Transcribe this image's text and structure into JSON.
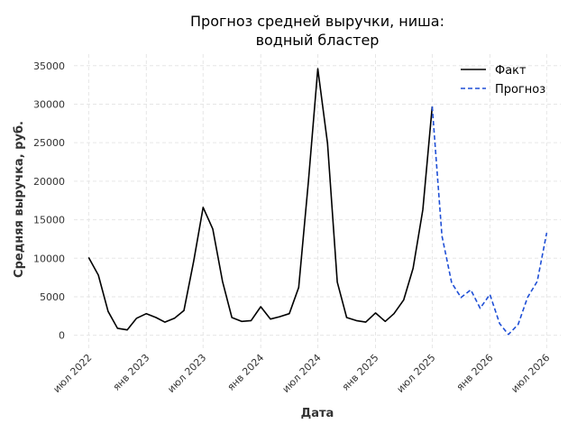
{
  "chart_data": {
    "type": "line",
    "title_lines": [
      "Прогноз средней выручки, ниша:",
      "водный бластер"
    ],
    "xlabel": "Дата",
    "ylabel": "Средняя выручка, руб.",
    "ylim": [
      -1800,
      36500
    ],
    "xlim": [
      "2022-05-15",
      "2026-08-15"
    ],
    "y_ticks": [
      0,
      5000,
      10000,
      15000,
      20000,
      25000,
      30000,
      35000
    ],
    "y_tick_labels": [
      "0",
      "5000",
      "10000",
      "15000",
      "20000",
      "25000",
      "30000",
      "35000"
    ],
    "x_ticks": [
      "2022-07-01",
      "2023-01-01",
      "2023-07-01",
      "2024-01-01",
      "2024-07-01",
      "2025-01-01",
      "2025-07-01",
      "2026-01-01",
      "2026-07-01"
    ],
    "x_tick_labels": [
      "июл 2022",
      "янв 2023",
      "июл 2023",
      "янв 2024",
      "июл 2024",
      "янв 2025",
      "июл 2025",
      "янв 2026",
      "июл 2026"
    ],
    "grid": true,
    "legend_position": "top-right",
    "series": [
      {
        "name": "Факт",
        "color": "#000000",
        "style": "solid",
        "x": [
          "2022-07-01",
          "2022-08-01",
          "2022-09-01",
          "2022-10-01",
          "2022-11-01",
          "2022-12-01",
          "2023-01-01",
          "2023-02-01",
          "2023-03-01",
          "2023-04-01",
          "2023-05-01",
          "2023-06-01",
          "2023-07-01",
          "2023-08-01",
          "2023-09-01",
          "2023-10-01",
          "2023-11-01",
          "2023-12-01",
          "2024-01-01",
          "2024-02-01",
          "2024-03-01",
          "2024-04-01",
          "2024-05-01",
          "2024-06-01",
          "2024-07-01",
          "2024-08-01",
          "2024-09-01",
          "2024-10-01",
          "2024-11-01",
          "2024-12-01",
          "2025-01-01",
          "2025-02-01",
          "2025-03-01",
          "2025-04-01",
          "2025-05-01",
          "2025-06-01",
          "2025-07-01"
        ],
        "y": [
          10100,
          7800,
          3100,
          900,
          700,
          2200,
          2800,
          2300,
          1700,
          2200,
          3200,
          9600,
          16600,
          13800,
          7000,
          2300,
          1800,
          1900,
          3700,
          2100,
          2400,
          2800,
          6200,
          20000,
          34600,
          24900,
          6900,
          2300,
          1900,
          1700,
          2900,
          1800,
          2800,
          4600,
          8700,
          16300,
          29700
        ]
      },
      {
        "name": "Прогноз",
        "color": "#1f4fd6",
        "style": "dashed",
        "x": [
          "2025-07-01",
          "2025-08-01",
          "2025-09-01",
          "2025-10-01",
          "2025-11-01",
          "2025-12-01",
          "2026-01-01",
          "2026-02-01",
          "2026-03-01",
          "2026-04-01",
          "2026-05-01",
          "2026-06-01",
          "2026-07-01"
        ],
        "y": [
          29700,
          12900,
          6800,
          4900,
          5900,
          3500,
          5300,
          1500,
          100,
          1400,
          4900,
          7000,
          13300
        ]
      }
    ]
  }
}
